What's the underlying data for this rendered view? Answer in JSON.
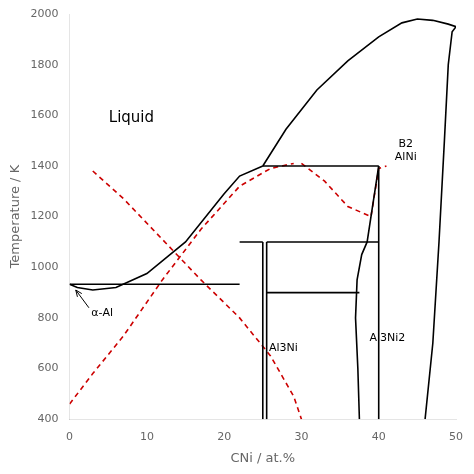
{
  "chart_data": {
    "type": "line",
    "xlabel": "CNi / at.%",
    "ylabel": "Temperature / K",
    "xlim": [
      0,
      50
    ],
    "ylim": [
      400,
      2000
    ],
    "xticks": [
      0,
      10,
      20,
      30,
      40,
      50
    ],
    "yticks": [
      400,
      600,
      800,
      1000,
      1200,
      1400,
      1600,
      1800,
      2000
    ],
    "grid": false,
    "series": [
      {
        "color": "#000000",
        "line_style": "solid",
        "x": [
          0,
          1,
          3,
          6,
          10,
          15,
          20,
          22,
          25
        ],
        "values": [
          933,
          920,
          910,
          920,
          975,
          1100,
          1290,
          1360,
          1400
        ]
      },
      {
        "color": "#000000",
        "line_style": "solid",
        "x": [
          25,
          28,
          32,
          36,
          40,
          43,
          45,
          47,
          49,
          50
        ],
        "values": [
          1400,
          1545,
          1700,
          1815,
          1910,
          1965,
          1980,
          1975,
          1960,
          1950
        ]
      },
      {
        "color": "#000000",
        "line_style": "solid",
        "x": [
          46,
          47,
          47.8,
          48.5,
          49,
          49.5,
          50
        ],
        "values": [
          400,
          700,
          1100,
          1500,
          1800,
          1930,
          1950
        ]
      },
      {
        "color": "#000000",
        "line_style": "solid",
        "x": [
          0,
          22
        ],
        "values": [
          933,
          933
        ]
      },
      {
        "color": "#000000",
        "line_style": "solid",
        "x": [
          22,
          25
        ],
        "values": [
          1100,
          1100
        ]
      },
      {
        "color": "#000000",
        "line_style": "solid",
        "x": [
          25,
          40
        ],
        "values": [
          1400,
          1400
        ]
      },
      {
        "color": "#000000",
        "line_style": "solid",
        "x": [
          25.5,
          40
        ],
        "values": [
          1100,
          1100
        ]
      },
      {
        "color": "#000000",
        "line_style": "solid",
        "x": [
          25,
          25
        ],
        "values": [
          400,
          1100
        ]
      },
      {
        "color": "#000000",
        "line_style": "solid",
        "x": [
          25.5,
          25.5
        ],
        "values": [
          400,
          1100
        ]
      },
      {
        "color": "#000000",
        "line_style": "solid",
        "x": [
          37.5,
          37.3,
          37.0,
          37.2,
          37.8,
          38.5,
          40
        ],
        "values": [
          400,
          600,
          800,
          950,
          1050,
          1100,
          1400
        ]
      },
      {
        "color": "#000000",
        "line_style": "solid",
        "x": [
          40,
          40
        ],
        "values": [
          400,
          1400
        ]
      },
      {
        "color": "#000000",
        "line_style": "solid",
        "x": [
          25.5,
          37.5
        ],
        "values": [
          900,
          900
        ]
      },
      {
        "color": "#cc0000",
        "line_style": "dashed",
        "x": [
          0,
          3,
          7,
          12,
          17,
          22,
          26,
          29
        ],
        "values": [
          460,
          580,
          730,
          950,
          1150,
          1320,
          1390,
          1410
        ]
      },
      {
        "color": "#cc0000",
        "line_style": "dashed",
        "x": [
          3,
          7,
          12,
          17,
          22,
          26,
          29,
          30
        ],
        "values": [
          1380,
          1270,
          1110,
          950,
          800,
          650,
          490,
          400
        ]
      },
      {
        "color": "#cc0000",
        "line_style": "dashed",
        "x": [
          30,
          33,
          36,
          39,
          40,
          41
        ],
        "values": [
          1410,
          1340,
          1240,
          1200,
          1390,
          1400
        ]
      }
    ],
    "annotations": [
      {
        "text": "Liquid",
        "x": 8,
        "y": 1590
      },
      {
        "text": "α-Al",
        "x": 2.8,
        "y": 820,
        "arrow_tail": [
          2.5,
          840
        ],
        "arrow_head": [
          0.8,
          910
        ]
      },
      {
        "text": "Al3Ni",
        "x": 25.8,
        "y": 680
      },
      {
        "text": "Al3Ni2",
        "x": 38.8,
        "y": 720
      },
      {
        "text": "B2\nAlNi",
        "x": 43.5,
        "y": 1460
      }
    ]
  }
}
